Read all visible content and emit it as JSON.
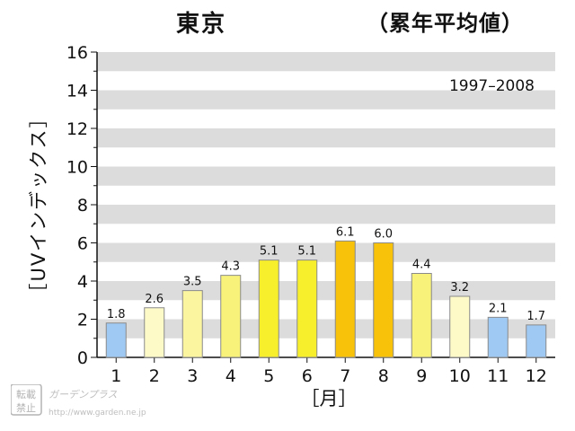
{
  "title": {
    "city": "東京",
    "note": "（累年平均値）"
  },
  "chart_data": {
    "type": "bar",
    "categories": [
      "1",
      "2",
      "3",
      "4",
      "5",
      "6",
      "7",
      "8",
      "9",
      "10",
      "11",
      "12"
    ],
    "values": [
      1.8,
      2.6,
      3.5,
      4.3,
      5.1,
      5.1,
      6.1,
      6.0,
      4.4,
      3.2,
      2.1,
      1.7
    ],
    "data_labels": [
      "1.8",
      "2.6",
      "3.5",
      "4.3",
      "5.1",
      "5.1",
      "6.1",
      "6.0",
      "4.4",
      "3.2",
      "2.1",
      "1.7"
    ],
    "bar_colors": [
      "#9fc8f2",
      "#fdfac8",
      "#fbf5a0",
      "#f8f27a",
      "#f7ef2b",
      "#f7ef2b",
      "#f8c20a",
      "#f8c20a",
      "#f8f27a",
      "#fdfac8",
      "#9fc8f2",
      "#9fc8f2"
    ],
    "ylim": [
      0,
      16
    ],
    "yticks": [
      0,
      2,
      4,
      6,
      8,
      10,
      12,
      14,
      16
    ],
    "ytick_labels": [
      "0",
      "2",
      "4",
      "6",
      "8",
      "10",
      "12",
      "14",
      "16"
    ],
    "ylabel": "［UVインデックス］",
    "xlabel": "［月］",
    "annotation": "1997–2008",
    "grid": "horizontal bands",
    "band_color": "#dcdcdc"
  },
  "watermark": {
    "stamp_top": "転載",
    "stamp_bottom": "禁止",
    "brand": "ガーデンプラス",
    "url": "http://www.garden.ne.jp"
  }
}
